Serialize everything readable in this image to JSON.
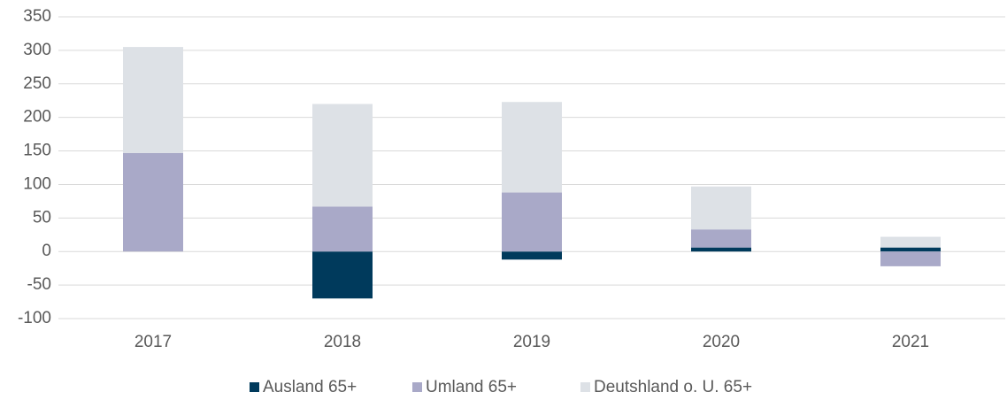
{
  "chart_data": {
    "type": "bar",
    "stacked": true,
    "categories": [
      "2017",
      "2018",
      "2019",
      "2020",
      "2021"
    ],
    "series": [
      {
        "name": "Ausland 65+",
        "color": "#003a5c",
        "values": [
          0,
          -70,
          -12,
          6,
          6
        ]
      },
      {
        "name": "Umland 65+",
        "color": "#a9a9c8",
        "values": [
          147,
          67,
          88,
          27,
          -22
        ]
      },
      {
        "name": "Deutshland o. U. 65+",
        "color": "#dde1e6",
        "values": [
          158,
          153,
          135,
          64,
          16
        ]
      }
    ],
    "ylim": [
      -100,
      350
    ],
    "yticks": [
      -100,
      -50,
      0,
      50,
      100,
      150,
      200,
      250,
      300,
      350
    ],
    "grid": true,
    "legend": "bottom"
  }
}
